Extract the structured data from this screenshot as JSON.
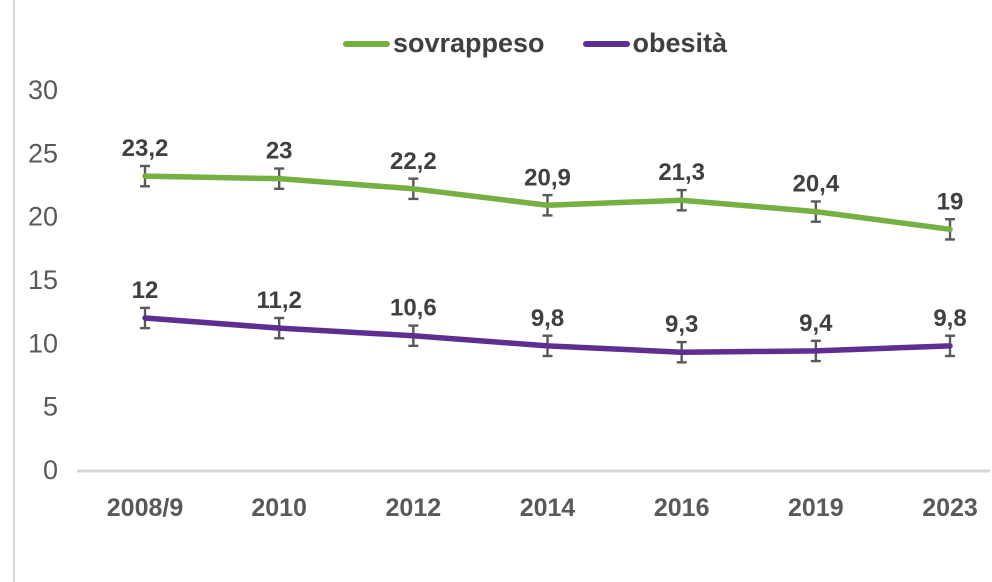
{
  "chart_data": {
    "type": "line",
    "title": "",
    "xlabel": "",
    "ylabel": "",
    "categories": [
      "2008/9",
      "2010",
      "2012",
      "2014",
      "2016",
      "2019",
      "2023"
    ],
    "series": [
      {
        "name": "sovrappeso",
        "color": "#76b043",
        "values": [
          23.2,
          23,
          22.2,
          20.9,
          21.3,
          20.4,
          19
        ],
        "labels": [
          "23,2",
          "23",
          "22,2",
          "20,9",
          "21,3",
          "20,4",
          "19"
        ],
        "error": 0.8
      },
      {
        "name": "obesità",
        "color": "#5f2e91",
        "values": [
          12,
          11.2,
          10.6,
          9.8,
          9.3,
          9.4,
          9.8
        ],
        "labels": [
          "12",
          "11,2",
          "10,6",
          "9,8",
          "9,3",
          "9,4",
          "9,8"
        ],
        "error": 0.8
      }
    ],
    "ylim": [
      0,
      30
    ],
    "ytick_step": 5,
    "yticks": [
      "0",
      "5",
      "10",
      "15",
      "20",
      "25",
      "30"
    ],
    "grid": false,
    "error_bars": true,
    "legend_position": "top"
  },
  "colors": {
    "data_label": "#404040",
    "axis_label": "#595959",
    "axis_line": "#d6d6d6",
    "error_bar": "#595959",
    "border_line": "#d9d9d9",
    "background": "#ffffff"
  }
}
